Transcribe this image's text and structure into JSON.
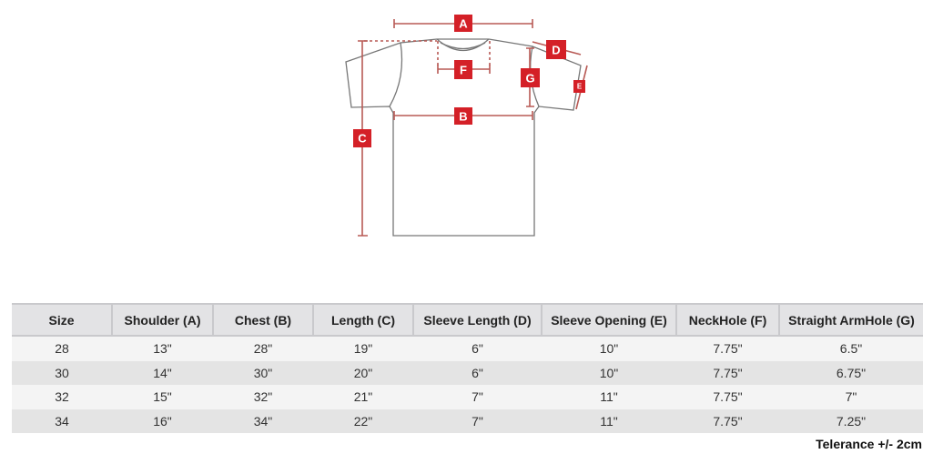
{
  "diagram": {
    "labels": {
      "A": "A",
      "B": "B",
      "C": "C",
      "D": "D",
      "E": "E",
      "F": "F",
      "G": "G"
    },
    "accent": "#d42027",
    "line": "#b85a55"
  },
  "table": {
    "headers": [
      "Size",
      "Shoulder (A)",
      "Chest (B)",
      "Length (C)",
      "Sleeve Length (D)",
      "Sleeve Opening (E)",
      "NeckHole (F)",
      "Straight ArmHole (G)"
    ],
    "rows": [
      [
        "28",
        "13\"",
        "28\"",
        "19\"",
        "6\"",
        "10\"",
        "7.75\"",
        "6.5\""
      ],
      [
        "30",
        "14\"",
        "30\"",
        "20\"",
        "6\"",
        "10\"",
        "7.75\"",
        "6.75\""
      ],
      [
        "32",
        "15\"",
        "32\"",
        "21\"",
        "7\"",
        "11\"",
        "7.75\"",
        "7\""
      ],
      [
        "34",
        "16\"",
        "34\"",
        "22\"",
        "7\"",
        "11\"",
        "7.75\"",
        "7.25\""
      ]
    ]
  },
  "tolerance": "Telerance +/- 2cm"
}
